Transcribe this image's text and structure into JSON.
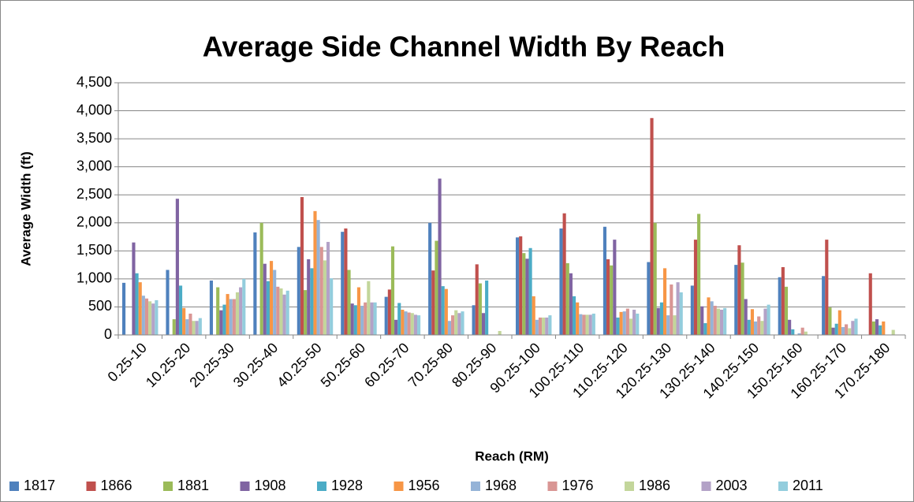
{
  "chart_data": {
    "type": "bar",
    "title": "Average Side Channel Width By Reach",
    "x_label": "Reach (RM)",
    "y_label": "Average Width (ft)",
    "categories": [
      "0.25-10",
      "10.25-20",
      "20.25-30",
      "30.25-40",
      "40.25-50",
      "50.25-60",
      "60.25-70",
      "70.25-80",
      "80.25-90",
      "90.25-100",
      "100.25-110",
      "110.25-120",
      "120.25-130",
      "130.25-140",
      "140.25-150",
      "150.25-160",
      "160.25-170",
      "170.25-180"
    ],
    "ylim": [
      0,
      4500
    ],
    "yticks": [
      0,
      500,
      {
        "value": 1000,
        "label": "1,000"
      },
      {
        "value": 1500,
        "label": "1,500"
      },
      {
        "value": 2000,
        "label": "2,000"
      },
      {
        "value": 2500,
        "label": "2,500"
      },
      {
        "value": 3000,
        "label": "3,000"
      },
      {
        "value": 3500,
        "label": "3,500"
      },
      {
        "value": 4000,
        "label": "4,000"
      },
      {
        "value": 4500,
        "label": "4,500"
      }
    ],
    "grid": true,
    "legend": "bottom",
    "series": [
      {
        "name": "1817",
        "color": "#4F81BD",
        "values": [
          930,
          1160,
          970,
          1830,
          1570,
          1840,
          680,
          2000,
          530,
          1740,
          1900,
          1930,
          1300,
          880,
          1250,
          1030,
          1050,
          0
        ]
      },
      {
        "name": "1866",
        "color": "#C0504D",
        "values": [
          0,
          0,
          0,
          0,
          2460,
          1900,
          810,
          1150,
          1260,
          1760,
          2170,
          1350,
          3870,
          1700,
          1600,
          1210,
          1700,
          1100
        ]
      },
      {
        "name": "1881",
        "color": "#9BBB59",
        "values": [
          0,
          280,
          850,
          2000,
          800,
          1160,
          1580,
          1680,
          920,
          1460,
          1280,
          1240,
          2000,
          2160,
          1290,
          860,
          490,
          240
        ]
      },
      {
        "name": "1908",
        "color": "#8064A2",
        "values": [
          1650,
          2430,
          440,
          1270,
          1350,
          560,
          270,
          2790,
          390,
          1360,
          1100,
          1700,
          480,
          510,
          640,
          270,
          130,
          280
        ]
      },
      {
        "name": "1928",
        "color": "#4BACC6",
        "values": [
          1100,
          880,
          540,
          960,
          1190,
          530,
          570,
          870,
          970,
          1550,
          690,
          310,
          580,
          210,
          270,
          100,
          200,
          170
        ]
      },
      {
        "name": "1956",
        "color": "#F79646",
        "values": [
          940,
          480,
          730,
          1320,
          2210,
          850,
          450,
          820,
          0,
          690,
          580,
          410,
          1190,
          670,
          460,
          0,
          440,
          240
        ]
      },
      {
        "name": "1968",
        "color": "#95B3D7",
        "values": [
          700,
          280,
          640,
          1160,
          2050,
          520,
          420,
          250,
          0,
          270,
          370,
          420,
          350,
          600,
          240,
          30,
          140,
          0
        ]
      },
      {
        "name": "1976",
        "color": "#D99694",
        "values": [
          650,
          380,
          640,
          860,
          1570,
          580,
          400,
          350,
          0,
          310,
          360,
          470,
          900,
          520,
          330,
          130,
          190,
          0
        ]
      },
      {
        "name": "1986",
        "color": "#C3D69B",
        "values": [
          600,
          250,
          760,
          830,
          1330,
          960,
          390,
          440,
          70,
          310,
          360,
          290,
          350,
          470,
          250,
          60,
          120,
          90
        ]
      },
      {
        "name": "2003",
        "color": "#B3A2C7",
        "values": [
          560,
          250,
          850,
          720,
          1660,
          580,
          360,
          390,
          0,
          310,
          360,
          450,
          940,
          450,
          470,
          0,
          250,
          0
        ]
      },
      {
        "name": "2011",
        "color": "#93CDDD",
        "values": [
          620,
          300,
          1000,
          790,
          1010,
          580,
          350,
          420,
          0,
          350,
          380,
          380,
          760,
          480,
          540,
          0,
          290,
          0
        ]
      }
    ]
  }
}
